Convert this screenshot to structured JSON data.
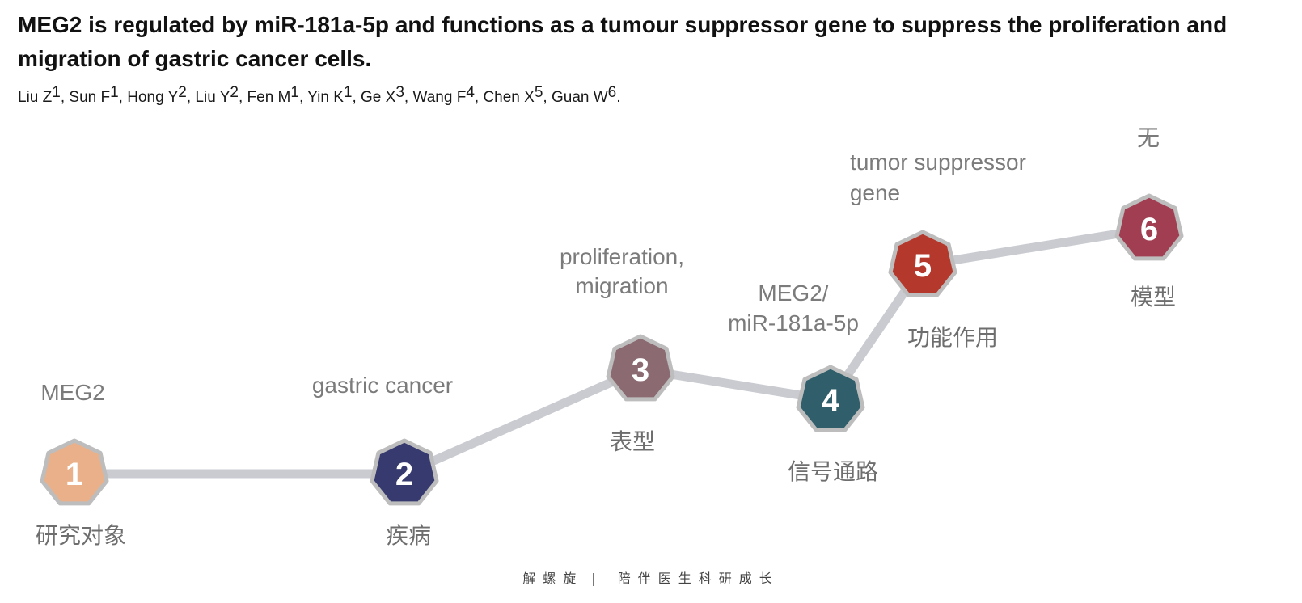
{
  "title": "MEG2 is regulated by miR-181a-5p and functions as a tumour suppressor gene to suppress the proliferation and migration of gastric cancer cells.",
  "authors": [
    {
      "name": "Liu Z",
      "affiliation": "1"
    },
    {
      "name": "Sun F",
      "affiliation": "1"
    },
    {
      "name": "Hong Y",
      "affiliation": "2"
    },
    {
      "name": "Liu Y",
      "affiliation": "2"
    },
    {
      "name": "Fen M",
      "affiliation": "1"
    },
    {
      "name": "Yin K",
      "affiliation": "1"
    },
    {
      "name": "Ge X",
      "affiliation": "3"
    },
    {
      "name": "Wang F",
      "affiliation": "4"
    },
    {
      "name": "Chen X",
      "affiliation": "5"
    },
    {
      "name": "Guan W",
      "affiliation": "6"
    }
  ],
  "authors_end": ".",
  "steps": [
    {
      "number": "1",
      "label": [
        "MEG2"
      ],
      "category": "研究对象",
      "color": "#e9b089"
    },
    {
      "number": "2",
      "label": [
        "gastric cancer"
      ],
      "category": "疾病",
      "color": "#363a6e"
    },
    {
      "number": "3",
      "label": [
        "proliferation,",
        "migration"
      ],
      "category": "表型",
      "color": "#8b6a72"
    },
    {
      "number": "4",
      "label": [
        "MEG2/",
        "miR-181a-5p"
      ],
      "category": "信号通路",
      "color": "#305f6b"
    },
    {
      "number": "5",
      "label": [
        "tumor suppressor",
        "gene"
      ],
      "category": "功能作用",
      "color": "#b5382d"
    },
    {
      "number": "6",
      "label": [
        "无"
      ],
      "category": "模型",
      "color": "#a13e52"
    }
  ],
  "colors": {
    "connector": "#c9cbd1",
    "badge_border": "#bdbdbd"
  },
  "footer": {
    "left": "解螺旋",
    "separator": "|",
    "right": "陪伴医生科研成长"
  }
}
